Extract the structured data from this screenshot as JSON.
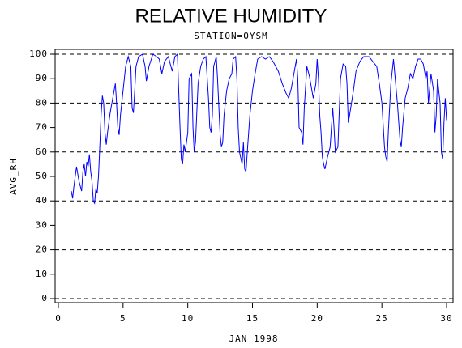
{
  "chart_data": {
    "type": "line",
    "title": "RELATIVE HUMIDITY",
    "subtitle": "STATION=OYSM",
    "x_label": "JAN 1998",
    "y_label": "AVG_RH",
    "xlim": [
      0,
      30
    ],
    "xticks": [
      0,
      5,
      10,
      15,
      20,
      25,
      30
    ],
    "ylim": [
      0,
      100
    ],
    "yticks": [
      0,
      10,
      20,
      30,
      40,
      50,
      60,
      70,
      80,
      90,
      100
    ],
    "ygrid": [
      0,
      20,
      40,
      60,
      80,
      100
    ],
    "x": [
      1.0,
      1.1,
      1.2,
      1.4,
      1.6,
      1.8,
      1.9,
      2.0,
      2.1,
      2.2,
      2.3,
      2.4,
      2.5,
      2.6,
      2.7,
      2.8,
      2.9,
      3.0,
      3.1,
      3.2,
      3.3,
      3.4,
      3.5,
      3.6,
      3.7,
      3.8,
      3.9,
      4.0,
      4.2,
      4.4,
      4.5,
      4.6,
      4.7,
      4.8,
      5.0,
      5.2,
      5.4,
      5.6,
      5.7,
      5.8,
      5.9,
      6.0,
      6.2,
      6.5,
      6.7,
      6.8,
      7.0,
      7.3,
      7.6,
      7.8,
      8.0,
      8.2,
      8.5,
      8.8,
      9.0,
      9.2,
      9.4,
      9.5,
      9.6,
      9.7,
      9.8,
      10.0,
      10.1,
      10.3,
      10.4,
      10.5,
      10.6,
      10.8,
      11.0,
      11.2,
      11.4,
      11.6,
      11.7,
      11.8,
      11.9,
      12.0,
      12.2,
      12.3,
      12.5,
      12.6,
      12.7,
      12.8,
      13.0,
      13.2,
      13.4,
      13.5,
      13.7,
      13.8,
      13.9,
      14.0,
      14.2,
      14.3,
      14.4,
      14.5,
      14.6,
      14.8,
      15.0,
      15.2,
      15.4,
      15.7,
      16.0,
      16.3,
      16.6,
      17.0,
      17.3,
      17.6,
      17.8,
      18.0,
      18.2,
      18.4,
      18.5,
      18.6,
      18.8,
      18.9,
      19.0,
      19.2,
      19.4,
      19.6,
      19.7,
      19.9,
      20.0,
      20.1,
      20.2,
      20.3,
      20.4,
      20.5,
      20.6,
      20.8,
      21.0,
      21.2,
      21.3,
      21.4,
      21.6,
      21.8,
      22.0,
      22.2,
      22.3,
      22.4,
      22.5,
      22.8,
      23.0,
      23.3,
      23.6,
      24.0,
      24.3,
      24.6,
      24.8,
      25.0,
      25.2,
      25.3,
      25.4,
      25.5,
      25.7,
      25.9,
      26.0,
      26.2,
      26.4,
      26.5,
      26.6,
      26.8,
      27.0,
      27.2,
      27.4,
      27.6,
      27.8,
      28.0,
      28.2,
      28.4,
      28.5,
      28.6,
      28.8,
      29.0,
      29.1,
      29.2,
      29.3,
      29.5,
      29.6,
      29.7,
      29.8,
      29.9,
      30.0
    ],
    "series": [
      {
        "color": "#0000ff",
        "values": [
          44,
          41,
          46,
          54,
          48,
          44,
          52,
          55,
          50,
          56,
          54,
          59,
          52,
          48,
          40,
          39,
          45,
          43,
          50,
          62,
          75,
          83,
          80,
          68,
          63,
          68,
          72,
          76,
          82,
          88,
          80,
          70,
          67,
          75,
          85,
          95,
          99,
          95,
          78,
          76,
          85,
          95,
          99,
          100,
          95,
          89,
          95,
          100,
          99,
          98,
          92,
          97,
          99,
          93,
          99,
          100,
          70,
          57,
          55,
          63,
          60,
          68,
          90,
          92,
          70,
          60,
          64,
          88,
          95,
          98,
          99,
          82,
          70,
          68,
          75,
          95,
          99,
          90,
          67,
          62,
          64,
          75,
          85,
          90,
          92,
          98,
          99,
          90,
          70,
          60,
          55,
          64,
          53,
          52,
          60,
          75,
          85,
          92,
          98,
          99,
          98,
          99,
          97,
          93,
          88,
          84,
          82,
          86,
          92,
          98,
          90,
          70,
          68,
          63,
          78,
          95,
          91,
          85,
          82,
          88,
          98,
          90,
          75,
          68,
          58,
          55,
          53,
          58,
          62,
          78,
          70,
          60,
          62,
          90,
          96,
          95,
          88,
          72,
          75,
          85,
          93,
          97,
          99,
          99,
          97,
          95,
          88,
          80,
          62,
          58,
          56,
          68,
          88,
          98,
          92,
          80,
          65,
          62,
          70,
          82,
          86,
          92,
          90,
          95,
          98,
          98,
          96,
          90,
          93,
          80,
          92,
          85,
          68,
          75,
          90,
          80,
          60,
          57,
          72,
          82,
          73
        ]
      }
    ]
  }
}
